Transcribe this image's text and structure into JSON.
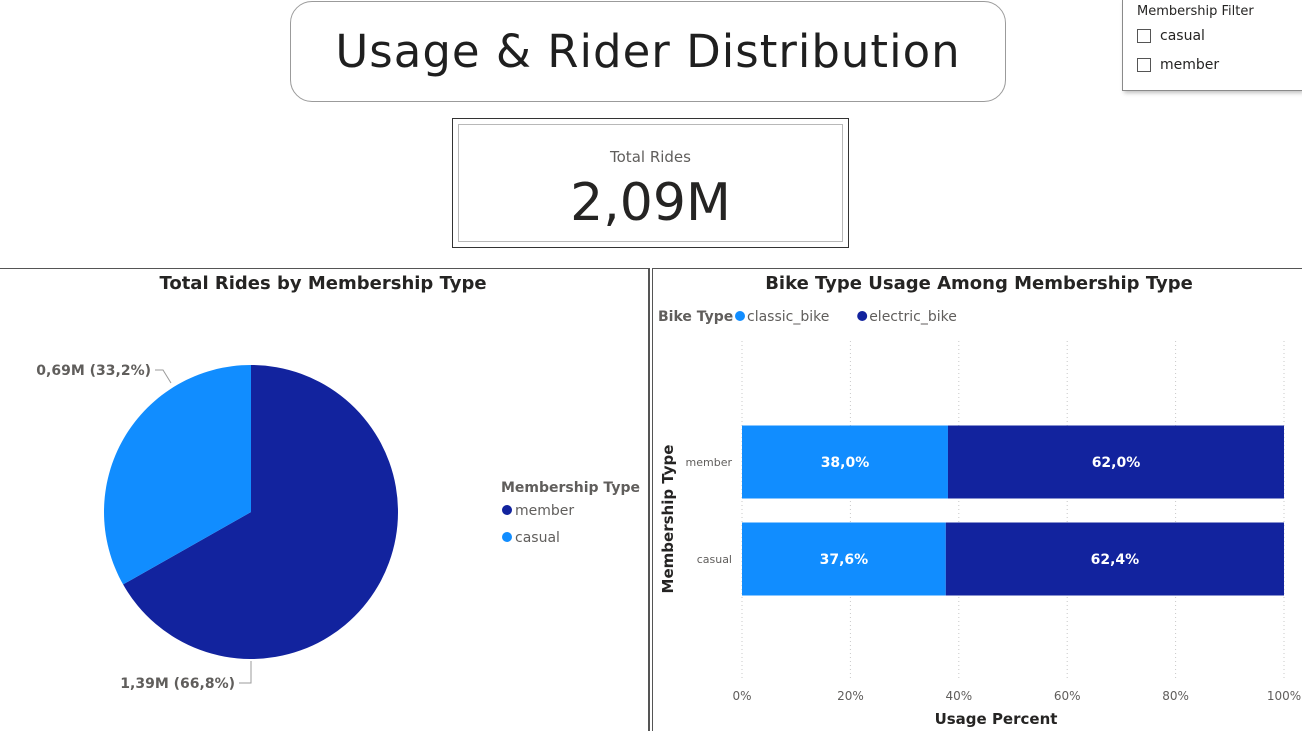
{
  "page": {
    "title": "Usage & Rider Distribution"
  },
  "filter": {
    "title": "Membership Filter",
    "options": [
      {
        "label": "casual",
        "checked": false
      },
      {
        "label": "member",
        "checked": false
      }
    ]
  },
  "kpi": {
    "label": "Total Rides",
    "value": "2,09M"
  },
  "colors": {
    "member": "#12239e",
    "casual": "#118dff",
    "classic_bike": "#118dff",
    "electric_bike": "#12239e"
  },
  "chart_data": [
    {
      "type": "pie",
      "title": "Total Rides by Membership Type",
      "legend": {
        "title": "Membership Type",
        "placement": "right"
      },
      "slices": [
        {
          "name": "member",
          "value": 1.39,
          "percent": 66.8,
          "label": "1,39M (66,8%)",
          "color": "#12239e"
        },
        {
          "name": "casual",
          "value": 0.69,
          "percent": 33.2,
          "label": "0,69M (33,2%)",
          "color": "#118dff"
        }
      ]
    },
    {
      "type": "bar",
      "orientation": "horizontal",
      "stacked": "100%",
      "title": "Bike Type Usage Among Membership Type",
      "legend": {
        "title": "Bike Type",
        "placement": "top-left"
      },
      "categories": [
        "member",
        "casual"
      ],
      "series": [
        {
          "name": "classic_bike",
          "values": [
            38.0,
            37.6
          ],
          "labels": [
            "38,0%",
            "37,6%"
          ],
          "color": "#118dff"
        },
        {
          "name": "electric_bike",
          "values": [
            62.0,
            62.4
          ],
          "labels": [
            "62,0%",
            "62,4%"
          ],
          "color": "#12239e"
        }
      ],
      "xlabel": "Usage Percent",
      "ylabel": "Membership Type",
      "xlim": [
        0,
        100
      ],
      "xticks": [
        "0%",
        "20%",
        "40%",
        "60%",
        "80%",
        "100%"
      ],
      "grid": true
    }
  ]
}
